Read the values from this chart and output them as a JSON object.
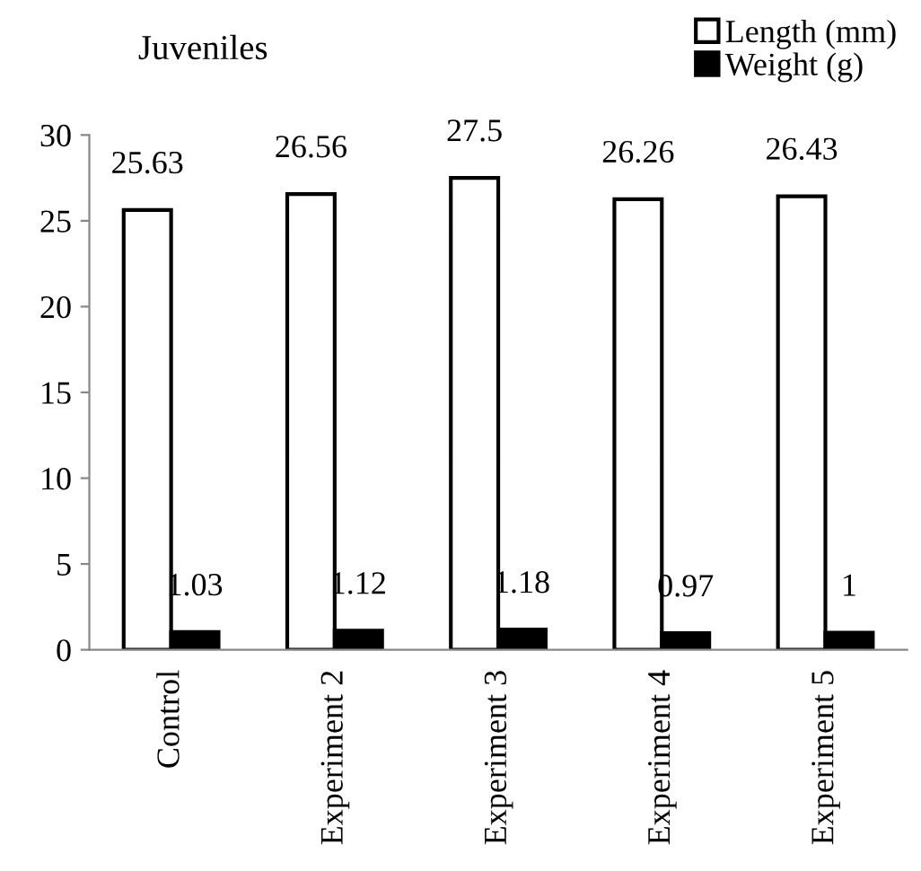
{
  "chart_data": {
    "type": "bar",
    "title": "Juveniles",
    "categories": [
      "Control",
      "Experiment 2",
      "Experiment 3",
      "Experiment 4",
      "Experiment 5"
    ],
    "series": [
      {
        "name": "Length (mm)",
        "color": "#ffffff",
        "values": [
          25.63,
          26.56,
          27.5,
          26.26,
          26.43
        ]
      },
      {
        "name": "Weight (g)",
        "color": "#000000",
        "values": [
          1.03,
          1.12,
          1.18,
          0.97,
          1
        ]
      }
    ],
    "ylim": [
      0,
      30
    ],
    "yticks": [
      0,
      5,
      10,
      15,
      20,
      25,
      30
    ],
    "grid": false,
    "legend": "top right",
    "data_labels": true
  }
}
